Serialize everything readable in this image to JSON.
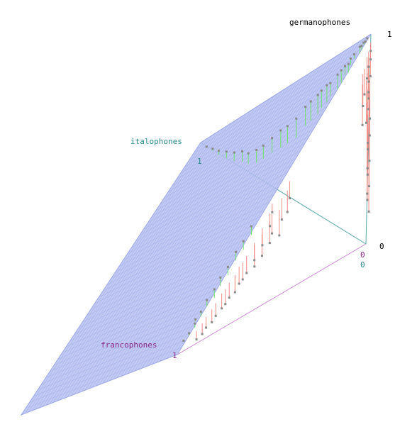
{
  "chart_data": {
    "type": "scatter",
    "title": "",
    "axes": {
      "germanophones": {
        "label": "germanophones",
        "ticks": [
          "0",
          "1"
        ]
      },
      "italophones": {
        "label": "italophones",
        "ticks": [
          "0",
          "1"
        ]
      },
      "francophones": {
        "label": "francophones",
        "ticks": [
          "0",
          "1"
        ]
      }
    },
    "plane": "germanophones + italophones + francophones = 1",
    "legend": "none",
    "grid": false,
    "colors": {
      "plane_fill": "#b8c2f2",
      "plane_grid": "#9aa6e6",
      "above_plane": "#6ee46e",
      "below_plane": "#f08a84",
      "point": "#8a8a8a",
      "german_axis": "#5aa8a8",
      "italian_axis": "#5aa8a8",
      "french_axis": "#d08ad8",
      "german_text": "#000000",
      "italian_text": "#2a8a8a",
      "french_text": "#8a2a8a"
    },
    "series": [
      {
        "values": [
          [
            0.98,
            0.01,
            0.01,
            0.0
          ],
          [
            0.97,
            0.01,
            0.02,
            0.0
          ],
          [
            0.95,
            0.02,
            0.02,
            0.01
          ],
          [
            0.93,
            0.02,
            0.03,
            0.02
          ],
          [
            0.91,
            0.03,
            0.03,
            0.03
          ],
          [
            0.89,
            0.04,
            0.05,
            0.02
          ],
          [
            0.86,
            0.05,
            0.06,
            0.03
          ],
          [
            0.84,
            0.04,
            0.08,
            0.04
          ],
          [
            0.82,
            0.06,
            0.08,
            0.04
          ],
          [
            0.78,
            0.07,
            0.09,
            0.06
          ],
          [
            0.75,
            0.08,
            0.1,
            0.07
          ],
          [
            0.72,
            0.1,
            0.12,
            0.06
          ],
          [
            0.68,
            0.12,
            0.12,
            0.08
          ],
          [
            0.65,
            0.14,
            0.13,
            0.08
          ],
          [
            0.62,
            0.15,
            0.14,
            0.09
          ],
          [
            0.58,
            0.18,
            0.15,
            0.09
          ],
          [
            0.55,
            0.2,
            0.16,
            0.09
          ],
          [
            0.5,
            0.22,
            0.19,
            0.09
          ],
          [
            0.46,
            0.26,
            0.2,
            0.08
          ],
          [
            0.42,
            0.3,
            0.2,
            0.08
          ],
          [
            0.38,
            0.34,
            0.21,
            0.07
          ],
          [
            0.34,
            0.38,
            0.22,
            0.06
          ],
          [
            0.3,
            0.42,
            0.22,
            0.06
          ],
          [
            0.26,
            0.48,
            0.21,
            0.05
          ],
          [
            0.22,
            0.55,
            0.18,
            0.05
          ],
          [
            0.18,
            0.62,
            0.16,
            0.04
          ],
          [
            0.14,
            0.7,
            0.13,
            0.03
          ],
          [
            0.1,
            0.78,
            0.1,
            0.02
          ],
          [
            0.07,
            0.85,
            0.07,
            0.01
          ],
          [
            0.04,
            0.92,
            0.04,
            0.0
          ],
          [
            0.1,
            0.02,
            0.86,
            0.02
          ],
          [
            0.12,
            0.03,
            0.82,
            0.03
          ],
          [
            0.15,
            0.02,
            0.79,
            0.04
          ],
          [
            0.18,
            0.03,
            0.75,
            0.04
          ],
          [
            0.22,
            0.02,
            0.72,
            0.04
          ],
          [
            0.26,
            0.03,
            0.67,
            0.04
          ],
          [
            0.3,
            0.02,
            0.64,
            0.04
          ],
          [
            0.34,
            0.03,
            0.59,
            0.04
          ],
          [
            0.05,
            0.01,
            0.93,
            0.01
          ],
          [
            0.03,
            0.02,
            0.95,
            0.0
          ],
          [
            0.07,
            0.01,
            0.9,
            0.02
          ],
          [
            0.08,
            0.03,
            0.88,
            0.01
          ]
        ]
      },
      {
        "values": [
          [
            0.96,
            0.0,
            0.0,
            0.04
          ],
          [
            0.94,
            0.0,
            0.0,
            0.06
          ],
          [
            0.92,
            0.0,
            0.01,
            0.07
          ],
          [
            0.9,
            0.0,
            0.0,
            0.1
          ],
          [
            0.88,
            0.01,
            0.0,
            0.11
          ],
          [
            0.86,
            0.0,
            0.01,
            0.13
          ],
          [
            0.84,
            0.01,
            0.0,
            0.15
          ],
          [
            0.82,
            0.0,
            0.01,
            0.17
          ],
          [
            0.8,
            0.0,
            0.0,
            0.2
          ],
          [
            0.78,
            0.01,
            0.01,
            0.2
          ],
          [
            0.76,
            0.0,
            0.0,
            0.24
          ],
          [
            0.74,
            0.0,
            0.01,
            0.25
          ],
          [
            0.72,
            0.01,
            0.0,
            0.27
          ],
          [
            0.7,
            0.0,
            0.0,
            0.3
          ],
          [
            0.68,
            0.0,
            0.01,
            0.31
          ],
          [
            0.66,
            0.01,
            0.0,
            0.33
          ],
          [
            0.64,
            0.0,
            0.0,
            0.36
          ],
          [
            0.62,
            0.0,
            0.01,
            0.37
          ],
          [
            0.6,
            0.01,
            0.0,
            0.39
          ],
          [
            0.58,
            0.0,
            0.0,
            0.42
          ],
          [
            0.88,
            0.02,
            0.0,
            0.1
          ],
          [
            0.85,
            0.0,
            0.03,
            0.12
          ],
          [
            0.81,
            0.02,
            0.02,
            0.15
          ],
          [
            0.77,
            0.01,
            0.03,
            0.19
          ],
          [
            0.45,
            0.01,
            0.5,
            0.04
          ],
          [
            0.42,
            0.0,
            0.52,
            0.06
          ],
          [
            0.4,
            0.01,
            0.5,
            0.09
          ],
          [
            0.38,
            0.0,
            0.52,
            0.1
          ],
          [
            0.36,
            0.01,
            0.55,
            0.08
          ],
          [
            0.34,
            0.0,
            0.56,
            0.1
          ],
          [
            0.32,
            0.0,
            0.6,
            0.08
          ],
          [
            0.3,
            0.01,
            0.59,
            0.1
          ],
          [
            0.28,
            0.0,
            0.64,
            0.08
          ],
          [
            0.26,
            0.0,
            0.66,
            0.08
          ],
          [
            0.24,
            0.01,
            0.67,
            0.08
          ],
          [
            0.22,
            0.0,
            0.7,
            0.08
          ],
          [
            0.2,
            0.0,
            0.73,
            0.07
          ],
          [
            0.18,
            0.0,
            0.75,
            0.07
          ],
          [
            0.16,
            0.01,
            0.76,
            0.07
          ],
          [
            0.14,
            0.0,
            0.8,
            0.06
          ],
          [
            0.12,
            0.0,
            0.82,
            0.06
          ],
          [
            0.1,
            0.0,
            0.85,
            0.05
          ],
          [
            0.08,
            0.0,
            0.87,
            0.05
          ],
          [
            0.06,
            0.0,
            0.9,
            0.04
          ],
          [
            0.5,
            0.02,
            0.4,
            0.08
          ],
          [
            0.47,
            0.01,
            0.42,
            0.1
          ],
          [
            0.44,
            0.02,
            0.44,
            0.1
          ],
          [
            0.41,
            0.0,
            0.47,
            0.12
          ]
        ]
      }
    ]
  }
}
